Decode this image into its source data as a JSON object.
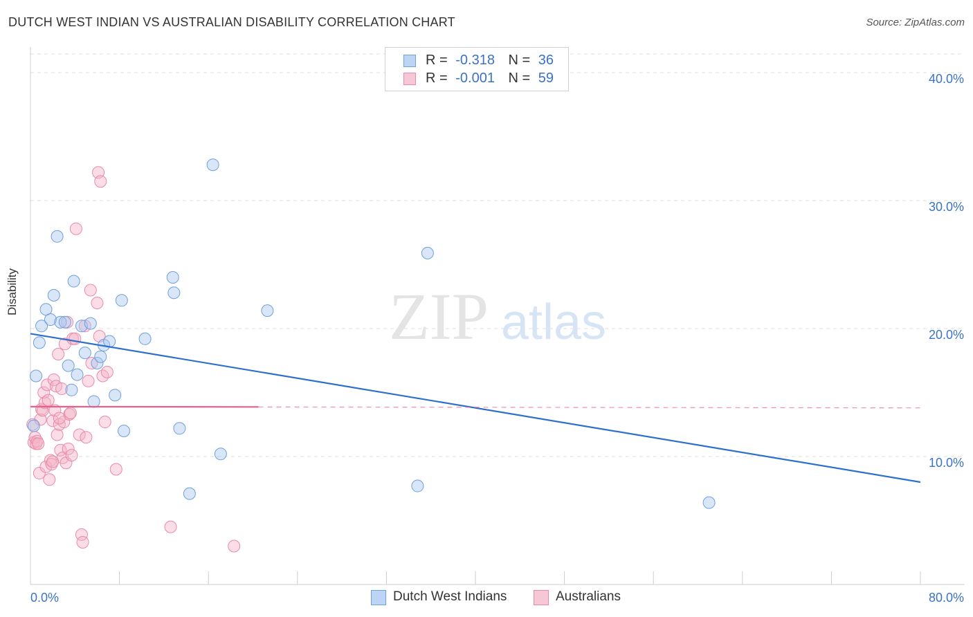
{
  "title": "DUTCH WEST INDIAN VS AUSTRALIAN DISABILITY CORRELATION CHART",
  "source": "Source: ZipAtlas.com",
  "watermark": {
    "zip": "ZIP",
    "atlas": "atlas"
  },
  "legend": {
    "rows": [
      {
        "r_label": "R =",
        "r_value": "-0.318",
        "n_label": "N =",
        "n_value": "36"
      },
      {
        "r_label": "R =",
        "r_value": "-0.001",
        "n_label": "N =",
        "n_value": "59"
      }
    ]
  },
  "colors": {
    "blue_fill": "#a8c8f0",
    "blue_stroke": "#6f9fdc",
    "blue_line": "#2d6fce",
    "pink_fill": "#f5b3c8",
    "pink_stroke": "#e98aa9",
    "pink_line": "#e8608a",
    "axis_text": "#3a72c7",
    "grid": "#dddddd"
  },
  "chart_data": {
    "type": "scatter",
    "title": "DUTCH WEST INDIAN VS AUSTRALIAN DISABILITY CORRELATION CHART",
    "xlabel": "",
    "ylabel": "Disability",
    "xlim": [
      0,
      80
    ],
    "ylim": [
      0,
      42
    ],
    "x_tick_labels": [
      "0.0%",
      "80.0%"
    ],
    "y_ticks": [
      10,
      20,
      30,
      40
    ],
    "y_tick_labels": [
      "10.0%",
      "20.0%",
      "30.0%",
      "40.0%"
    ],
    "series": [
      {
        "name": "Dutch West Indians",
        "r": -0.318,
        "n": 36,
        "trend": {
          "x0": 0,
          "y0": 19.6,
          "x1": 80,
          "y1": 8.0,
          "solid_until": 80
        },
        "points": [
          [
            0.3,
            12.4
          ],
          [
            0.5,
            16.3
          ],
          [
            0.8,
            18.9
          ],
          [
            1.0,
            20.2
          ],
          [
            1.4,
            21.5
          ],
          [
            1.8,
            20.7
          ],
          [
            2.1,
            22.6
          ],
          [
            2.4,
            27.2
          ],
          [
            2.7,
            20.5
          ],
          [
            3.1,
            20.5
          ],
          [
            3.4,
            17.1
          ],
          [
            3.7,
            15.2
          ],
          [
            3.9,
            23.7
          ],
          [
            4.2,
            16.4
          ],
          [
            4.6,
            20.2
          ],
          [
            4.9,
            18.1
          ],
          [
            5.4,
            20.4
          ],
          [
            5.7,
            14.3
          ],
          [
            6.0,
            17.3
          ],
          [
            6.3,
            17.8
          ],
          [
            6.6,
            18.7
          ],
          [
            7.1,
            19.0
          ],
          [
            7.6,
            14.8
          ],
          [
            8.2,
            22.2
          ],
          [
            8.4,
            12.0
          ],
          [
            10.3,
            19.2
          ],
          [
            12.8,
            24.0
          ],
          [
            12.9,
            22.8
          ],
          [
            13.4,
            12.2
          ],
          [
            14.3,
            7.1
          ],
          [
            16.4,
            32.8
          ],
          [
            17.1,
            10.2
          ],
          [
            21.3,
            21.4
          ],
          [
            35.7,
            25.9
          ],
          [
            34.8,
            7.7
          ],
          [
            61.0,
            6.4
          ]
        ]
      },
      {
        "name": "Australians",
        "r": -0.001,
        "n": 59,
        "trend": {
          "x0": 0,
          "y0": 13.9,
          "x1": 80,
          "y1": 13.8,
          "solid_until": 20.5
        },
        "points": [
          [
            0.2,
            12.5
          ],
          [
            0.3,
            11.1
          ],
          [
            0.4,
            11.5
          ],
          [
            0.5,
            11.0
          ],
          [
            0.6,
            11.2
          ],
          [
            0.7,
            11.0
          ],
          [
            0.8,
            8.7
          ],
          [
            0.9,
            12.9
          ],
          [
            1.0,
            13.7
          ],
          [
            1.1,
            13.6
          ],
          [
            1.2,
            15.0
          ],
          [
            1.3,
            14.2
          ],
          [
            1.4,
            9.2
          ],
          [
            1.5,
            15.6
          ],
          [
            1.6,
            14.4
          ],
          [
            1.7,
            8.2
          ],
          [
            1.8,
            9.7
          ],
          [
            1.9,
            9.4
          ],
          [
            2.0,
            12.8
          ],
          [
            2.1,
            16.0
          ],
          [
            2.2,
            13.6
          ],
          [
            2.3,
            15.5
          ],
          [
            2.4,
            11.7
          ],
          [
            2.5,
            18.0
          ],
          [
            2.6,
            12.5
          ],
          [
            2.7,
            10.5
          ],
          [
            2.8,
            15.3
          ],
          [
            2.9,
            9.9
          ],
          [
            3.0,
            12.7
          ],
          [
            3.1,
            18.8
          ],
          [
            3.2,
            9.5
          ],
          [
            3.3,
            20.5
          ],
          [
            3.4,
            10.6
          ],
          [
            3.5,
            13.3
          ],
          [
            3.6,
            13.4
          ],
          [
            3.7,
            10.1
          ],
          [
            3.8,
            19.2
          ],
          [
            4.0,
            19.2
          ],
          [
            4.1,
            27.8
          ],
          [
            4.4,
            11.7
          ],
          [
            4.6,
            3.9
          ],
          [
            4.7,
            3.3
          ],
          [
            4.9,
            20.2
          ],
          [
            5.0,
            11.5
          ],
          [
            5.2,
            15.9
          ],
          [
            5.4,
            23.0
          ],
          [
            5.5,
            17.3
          ],
          [
            6.0,
            22.0
          ],
          [
            6.1,
            32.2
          ],
          [
            6.2,
            19.4
          ],
          [
            6.3,
            31.5
          ],
          [
            6.5,
            16.3
          ],
          [
            6.7,
            12.7
          ],
          [
            6.9,
            16.6
          ],
          [
            7.7,
            9.0
          ],
          [
            12.6,
            4.5
          ],
          [
            18.3,
            3.0
          ],
          [
            2.0,
            9.6
          ],
          [
            2.6,
            13.0
          ]
        ]
      }
    ]
  },
  "bottom_legend": {
    "blue_label": "Dutch West Indians",
    "pink_label": "Australians"
  }
}
